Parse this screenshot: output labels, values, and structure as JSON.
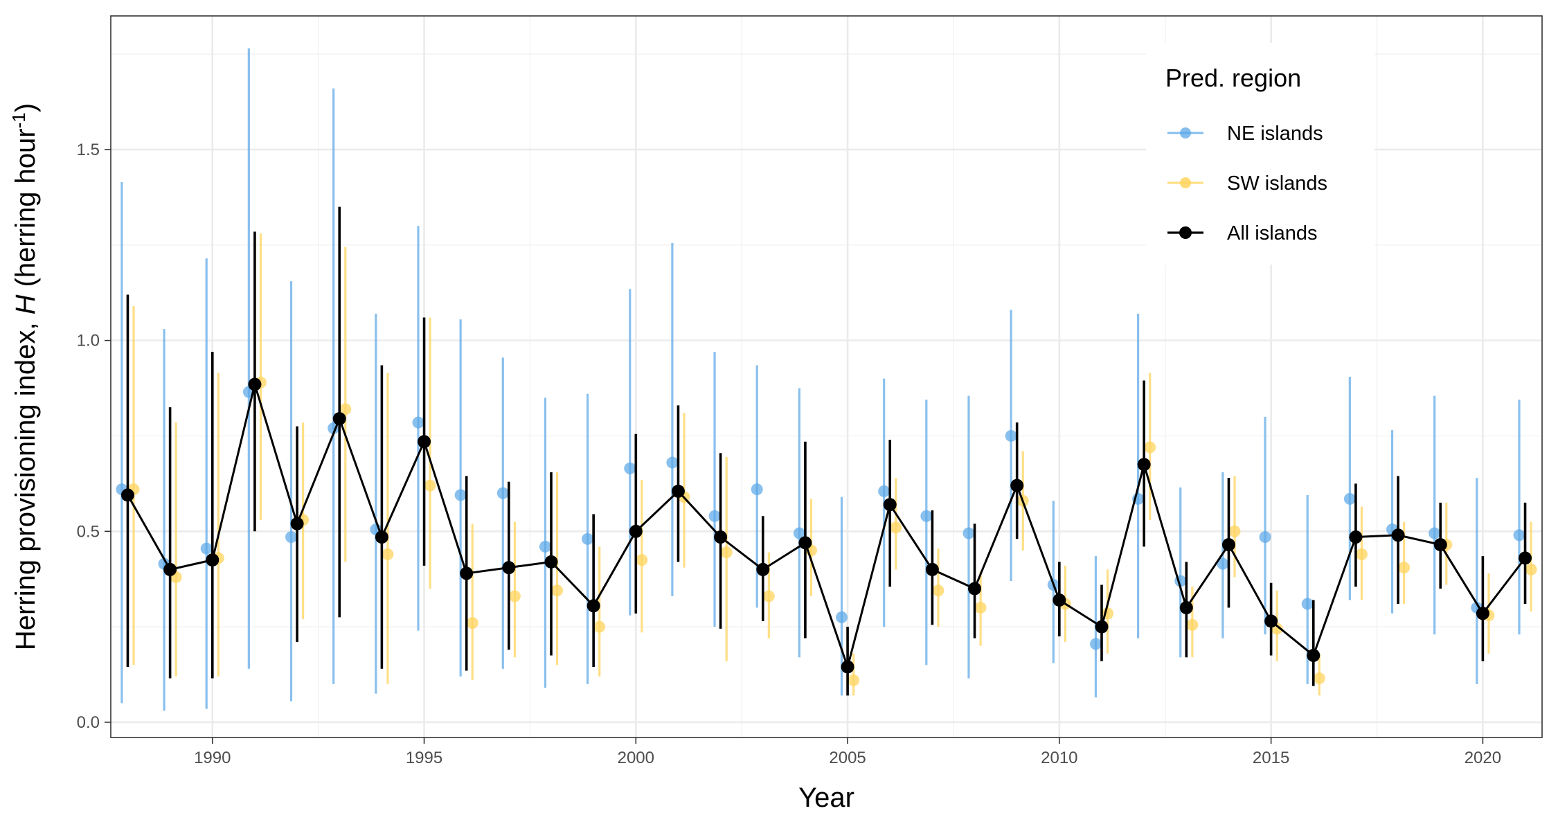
{
  "chart_data": {
    "type": "scatter",
    "xlabel": "Year",
    "ylabel": {
      "prefix": "Herring provisioning index, ",
      "italic": "H",
      "mid": " (herring hour",
      "sup": "-1",
      "suffix": ")"
    },
    "xlim": [
      1987.6,
      2021.4
    ],
    "ylim": [
      -0.04,
      1.85
    ],
    "x_ticks": [
      1990,
      1995,
      2000,
      2005,
      2010,
      2015,
      2020
    ],
    "y_ticks": [
      0.0,
      0.5,
      1.0,
      1.5
    ],
    "y_tick_labels": [
      "0.0",
      "0.5",
      "1.0",
      "1.5"
    ],
    "grid": true,
    "legend": {
      "title": "Pred. region",
      "placement": "top-right",
      "entries": [
        "NE islands",
        "SW islands",
        "All islands"
      ]
    },
    "colors": {
      "ne": "#5ba7e8",
      "sw": "#ffd45e",
      "all": "#000000"
    },
    "years": [
      1988,
      1989,
      1990,
      1991,
      1992,
      1993,
      1994,
      1995,
      1996,
      1997,
      1998,
      1999,
      2000,
      2001,
      2002,
      2003,
      2004,
      2005,
      2006,
      2007,
      2008,
      2009,
      2010,
      2011,
      2012,
      2013,
      2014,
      2015,
      2016,
      2017,
      2018,
      2019,
      2020,
      2021
    ],
    "series": [
      {
        "name": "NE islands",
        "values": [
          0.61,
          0.415,
          0.455,
          0.865,
          0.485,
          0.77,
          0.505,
          0.785,
          0.595,
          0.6,
          0.46,
          0.48,
          0.665,
          0.68,
          0.54,
          0.61,
          0.495,
          0.275,
          0.605,
          0.54,
          0.495,
          0.75,
          0.36,
          0.205,
          0.585,
          0.37,
          0.415,
          0.485,
          0.31,
          0.585,
          0.505,
          0.495,
          0.3,
          0.49
        ],
        "lower": [
          0.05,
          0.03,
          0.035,
          0.14,
          0.055,
          0.1,
          0.075,
          0.24,
          0.12,
          0.14,
          0.09,
          0.1,
          0.28,
          0.33,
          0.25,
          0.3,
          0.17,
          0.07,
          0.25,
          0.15,
          0.115,
          0.37,
          0.155,
          0.065,
          0.22,
          0.17,
          0.22,
          0.23,
          0.1,
          0.32,
          0.285,
          0.23,
          0.1,
          0.23
        ],
        "upper": [
          1.415,
          1.03,
          1.215,
          1.765,
          1.155,
          1.66,
          1.07,
          1.3,
          1.055,
          0.955,
          0.85,
          0.86,
          1.135,
          1.255,
          0.97,
          0.935,
          0.875,
          0.59,
          0.9,
          0.845,
          0.855,
          1.08,
          0.58,
          0.435,
          1.07,
          0.615,
          0.655,
          0.8,
          0.595,
          0.905,
          0.765,
          0.855,
          0.64,
          0.845
        ]
      },
      {
        "name": "SW islands",
        "values": [
          0.61,
          0.38,
          0.43,
          0.89,
          0.53,
          0.82,
          0.44,
          0.62,
          0.26,
          0.33,
          0.345,
          0.25,
          0.425,
          0.59,
          0.445,
          0.33,
          0.45,
          0.11,
          0.51,
          0.345,
          0.3,
          0.58,
          0.31,
          0.285,
          0.72,
          0.255,
          0.5,
          0.245,
          0.115,
          0.44,
          0.405,
          0.465,
          0.28,
          0.4
        ],
        "lower": [
          0.15,
          0.12,
          0.12,
          0.53,
          0.27,
          0.42,
          0.1,
          0.35,
          0.11,
          0.17,
          0.15,
          0.12,
          0.235,
          0.405,
          0.16,
          0.22,
          0.33,
          0.07,
          0.4,
          0.25,
          0.2,
          0.45,
          0.21,
          0.18,
          0.53,
          0.17,
          0.38,
          0.16,
          0.07,
          0.32,
          0.31,
          0.36,
          0.18,
          0.29
        ],
        "upper": [
          1.09,
          0.785,
          0.915,
          1.28,
          0.785,
          1.245,
          0.915,
          1.06,
          0.52,
          0.525,
          0.655,
          0.46,
          0.635,
          0.81,
          0.695,
          0.445,
          0.585,
          0.18,
          0.64,
          0.455,
          0.395,
          0.71,
          0.41,
          0.4,
          0.915,
          0.355,
          0.645,
          0.345,
          0.18,
          0.565,
          0.525,
          0.575,
          0.39,
          0.525
        ]
      },
      {
        "name": "All islands",
        "values": [
          0.595,
          0.4,
          0.425,
          0.885,
          0.52,
          0.795,
          0.485,
          0.735,
          0.39,
          0.405,
          0.42,
          0.305,
          0.5,
          0.605,
          0.485,
          0.4,
          0.47,
          0.145,
          0.57,
          0.4,
          0.35,
          0.62,
          0.32,
          0.25,
          0.675,
          0.3,
          0.465,
          0.265,
          0.175,
          0.485,
          0.49,
          0.465,
          0.285,
          0.43
        ],
        "lower": [
          0.145,
          0.115,
          0.115,
          0.5,
          0.21,
          0.275,
          0.14,
          0.41,
          0.135,
          0.19,
          0.175,
          0.145,
          0.285,
          0.42,
          0.245,
          0.265,
          0.22,
          0.07,
          0.355,
          0.255,
          0.22,
          0.48,
          0.225,
          0.16,
          0.46,
          0.17,
          0.3,
          0.175,
          0.095,
          0.355,
          0.31,
          0.35,
          0.16,
          0.31
        ],
        "upper": [
          1.12,
          0.825,
          0.97,
          1.285,
          0.775,
          1.35,
          0.935,
          1.06,
          0.645,
          0.63,
          0.655,
          0.545,
          0.755,
          0.83,
          0.705,
          0.54,
          0.735,
          0.25,
          0.74,
          0.555,
          0.52,
          0.785,
          0.42,
          0.36,
          0.895,
          0.42,
          0.64,
          0.365,
          0.32,
          0.625,
          0.645,
          0.575,
          0.435,
          0.575
        ]
      }
    ]
  }
}
